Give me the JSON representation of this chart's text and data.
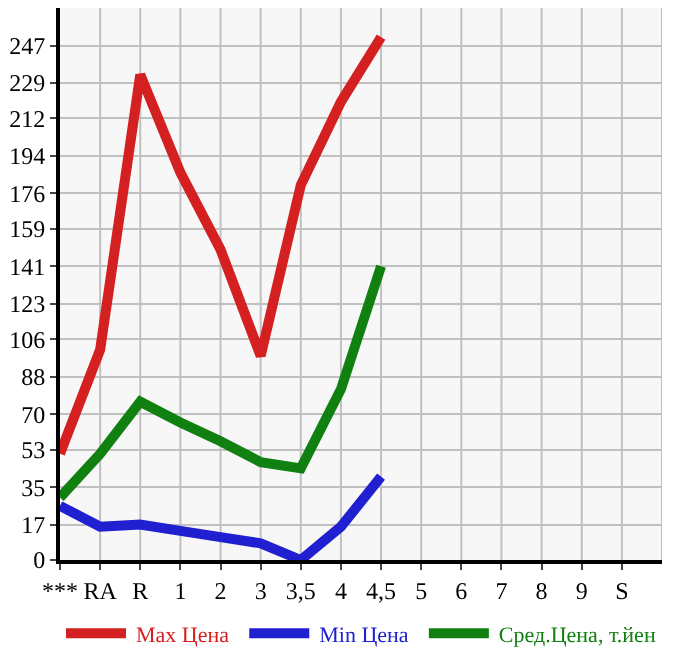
{
  "chart_data": {
    "type": "line",
    "categories": [
      "***",
      "RA",
      "R",
      "1",
      "2",
      "3",
      "3,5",
      "4",
      "4,5",
      "5",
      "6",
      "7",
      "8",
      "9",
      "S"
    ],
    "series": [
      {
        "name": "Max Цена",
        "color": "#d42020",
        "values": [
          51,
          101,
          233,
          186,
          149,
          98,
          180,
          220,
          251,
          null,
          null,
          null,
          null,
          null,
          null
        ]
      },
      {
        "name": "Min Цена",
        "color": "#2020d0",
        "values": [
          26,
          16,
          17,
          14,
          11,
          8,
          0,
          16,
          40,
          null,
          null,
          null,
          null,
          null,
          null
        ]
      },
      {
        "name": "Сред.Цена, т.йен",
        "color": "#108010",
        "values": [
          30,
          51,
          76,
          66,
          57,
          47,
          44,
          82,
          141,
          null,
          null,
          null,
          null,
          null,
          null
        ]
      }
    ],
    "ylim": [
      0,
      265
    ],
    "yticks": [
      0,
      17,
      35,
      53,
      70,
      88,
      106,
      123,
      141,
      159,
      176,
      194,
      212,
      229,
      247
    ],
    "grid": true,
    "legend": "bottom",
    "marker": "none",
    "line_style": "solid"
  }
}
